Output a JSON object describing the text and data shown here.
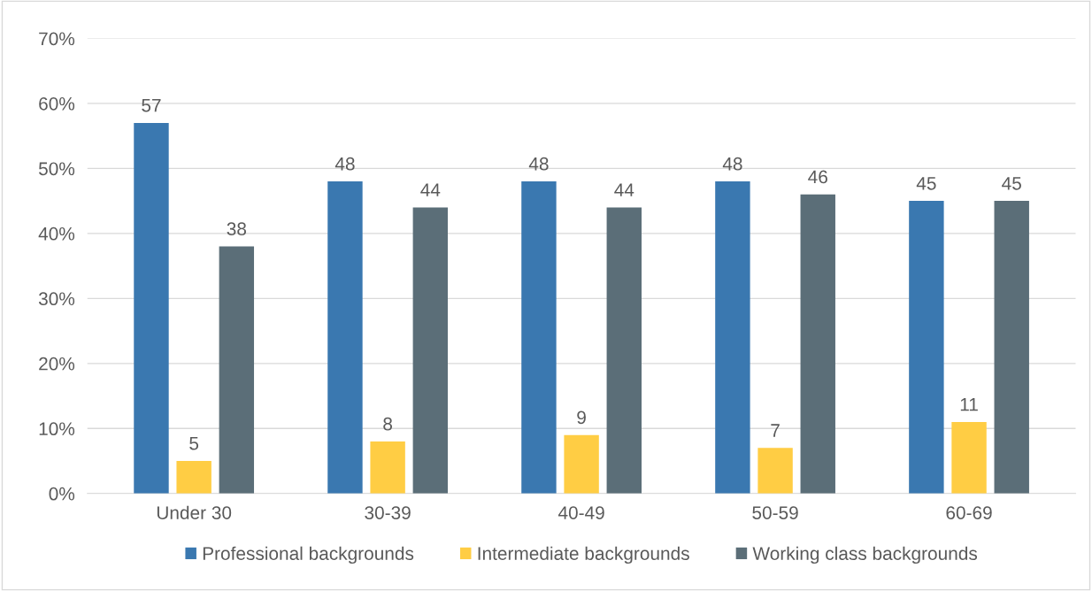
{
  "chart_data": {
    "type": "bar",
    "categories": [
      "Under 30",
      "30-39",
      "40-49",
      "50-59",
      "60-69"
    ],
    "series": [
      {
        "name": "Professional backgrounds",
        "color": "#3a78b0",
        "values": [
          57,
          48,
          48,
          48,
          45
        ]
      },
      {
        "name": "Intermediate backgrounds",
        "color": "#ffcd44",
        "values": [
          5,
          8,
          9,
          7,
          11
        ]
      },
      {
        "name": "Working class backgrounds",
        "color": "#5b6e78",
        "values": [
          38,
          44,
          44,
          46,
          45
        ]
      }
    ],
    "ylim": [
      0,
      70
    ],
    "yticks": [
      {
        "value": 0,
        "label": "0%"
      },
      {
        "value": 10,
        "label": "10%"
      },
      {
        "value": 20,
        "label": "20%"
      },
      {
        "value": 30,
        "label": "30%"
      },
      {
        "value": 40,
        "label": "40%"
      },
      {
        "value": 50,
        "label": "50%"
      },
      {
        "value": 60,
        "label": "60%"
      },
      {
        "value": 70,
        "label": "70%"
      }
    ],
    "grid": "y",
    "legend": "bottom",
    "data_labels": true
  }
}
